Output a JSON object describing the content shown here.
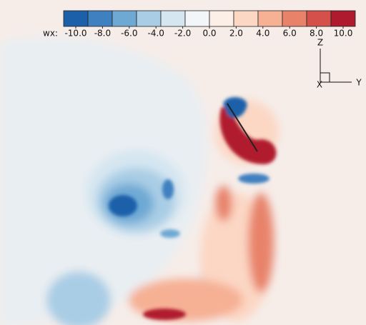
{
  "colorbar": {
    "label": "wx:",
    "colors": [
      "#1c60aa",
      "#3f80c0",
      "#6ea9d4",
      "#a9cde5",
      "#d5e6f1",
      "#f3f6f8",
      "#fcefe8",
      "#fcd7c4",
      "#f6b094",
      "#e8836a",
      "#d4504b",
      "#b01a2e"
    ],
    "ticks": [
      {
        "value": -10,
        "label": "-10.0"
      },
      {
        "value": -8,
        "label": "-8.0"
      },
      {
        "value": -6,
        "label": "-6.0"
      },
      {
        "value": -4,
        "label": "-4.0"
      },
      {
        "value": -2,
        "label": "-2.0"
      },
      {
        "value": 0,
        "label": "0.0"
      },
      {
        "value": 2,
        "label": "2.0"
      },
      {
        "value": 4,
        "label": "4.0"
      },
      {
        "value": 6,
        "label": "6.0"
      },
      {
        "value": 8,
        "label": "8.0"
      },
      {
        "value": 10,
        "label": "10.0"
      }
    ]
  },
  "axes_triad": {
    "z": "Z",
    "y": "Y",
    "x": "X"
  }
}
